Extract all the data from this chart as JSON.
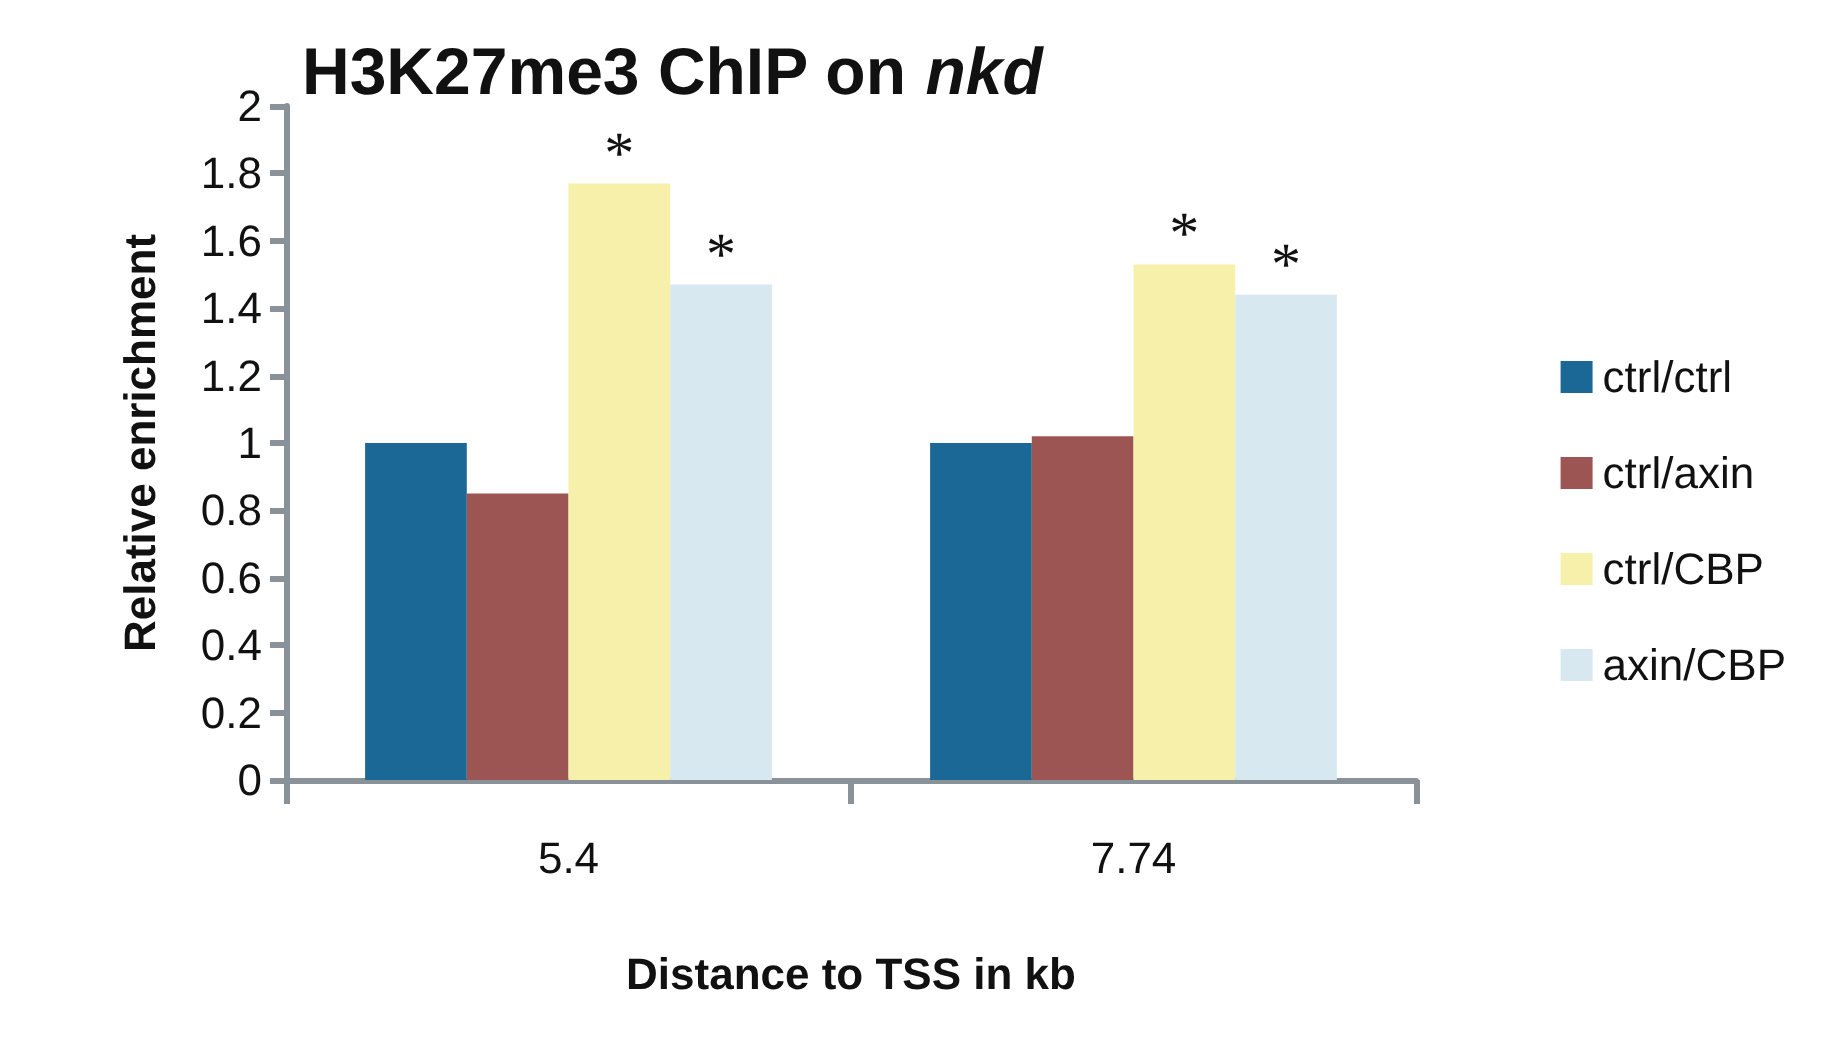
{
  "chart_data": {
    "type": "bar",
    "title": "H3K27me3 ChIP on nkd",
    "xlabel": "Distance to TSS in kb",
    "ylabel": "Relative enrichment",
    "categories": [
      "5.4",
      "7.74"
    ],
    "series": [
      {
        "name": "ctrl/ctrl",
        "color": "#1b6896",
        "values": [
          1,
          1
        ]
      },
      {
        "name": "ctrl/axin",
        "color": "#9c5552",
        "values": [
          0.85,
          1.02
        ]
      },
      {
        "name": "ctrl/CBP",
        "color": "#f6f0aa",
        "values": [
          1.77,
          1.53
        ],
        "value_labels": [
          "*",
          "*"
        ]
      },
      {
        "name": "axin/CBP",
        "color": "#d8e8f0",
        "values": [
          1.47,
          1.44
        ],
        "value_labels": [
          "*",
          "*"
        ]
      }
    ],
    "ylim": [
      0,
      2
    ],
    "yticks": [
      0,
      0.2,
      0.4,
      0.6,
      0.8,
      1,
      1.2,
      1.4,
      1.6,
      1.8,
      2
    ],
    "grid": false,
    "legend": "right"
  }
}
